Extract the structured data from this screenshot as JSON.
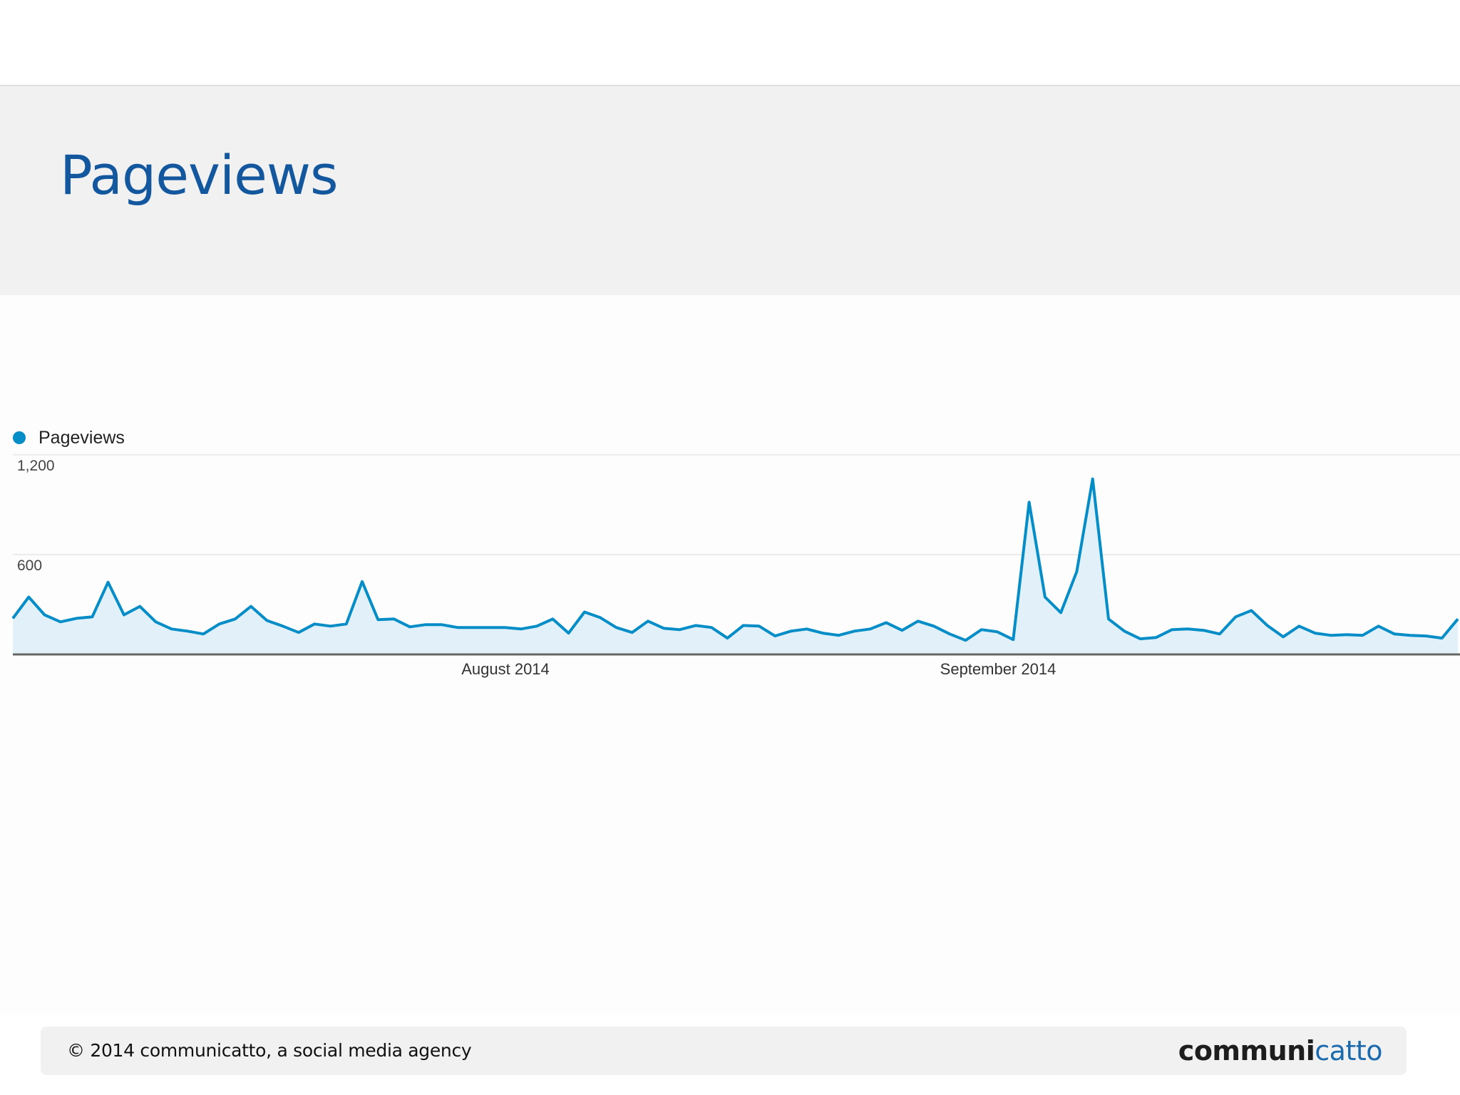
{
  "header": {
    "title": "Pageviews"
  },
  "footer": {
    "copyright": "© 2014 communicatto, a social media agency",
    "logo_part1": "communi",
    "logo_part2": "catto"
  },
  "colors": {
    "title": "#13579e",
    "series_line": "#058dc7",
    "series_fill": "#e2f1f9",
    "logo_dark": "#1d1d1d",
    "logo_blue": "#1a6aad"
  },
  "chart_data": {
    "type": "area",
    "title": "",
    "xlabel": "",
    "ylabel": "",
    "legend": [
      "Pageviews"
    ],
    "legend_position": "top-left",
    "grid": true,
    "ylim": [
      0,
      1200
    ],
    "y_ticks": [
      "1,200",
      "600"
    ],
    "y_tick_values": [
      1200,
      600
    ],
    "x_tick_labels": [
      {
        "label": "August 2014",
        "index": 31
      },
      {
        "label": "September 2014",
        "index": 62
      }
    ],
    "x_range": "July 1, 2014 – September 30, 2014 (daily)",
    "series": [
      {
        "name": "Pageviews",
        "values": [
          217,
          345,
          238,
          196,
          217,
          226,
          434,
          238,
          289,
          196,
          153,
          140,
          123,
          183,
          213,
          289,
          204,
          170,
          132,
          183,
          170,
          183,
          438,
          209,
          213,
          166,
          179,
          179,
          162,
          162,
          162,
          162,
          153,
          170,
          213,
          128,
          255,
          221,
          162,
          132,
          200,
          157,
          149,
          174,
          162,
          98,
          174,
          170,
          111,
          140,
          153,
          128,
          115,
          140,
          153,
          191,
          145,
          200,
          170,
          123,
          85,
          149,
          136,
          89,
          915,
          345,
          251,
          498,
          1055,
          213,
          140,
          94,
          102,
          149,
          153,
          145,
          123,
          226,
          264,
          174,
          106,
          170,
          128,
          115,
          119,
          115,
          170,
          123,
          115,
          111,
          98,
          213
        ]
      }
    ]
  }
}
